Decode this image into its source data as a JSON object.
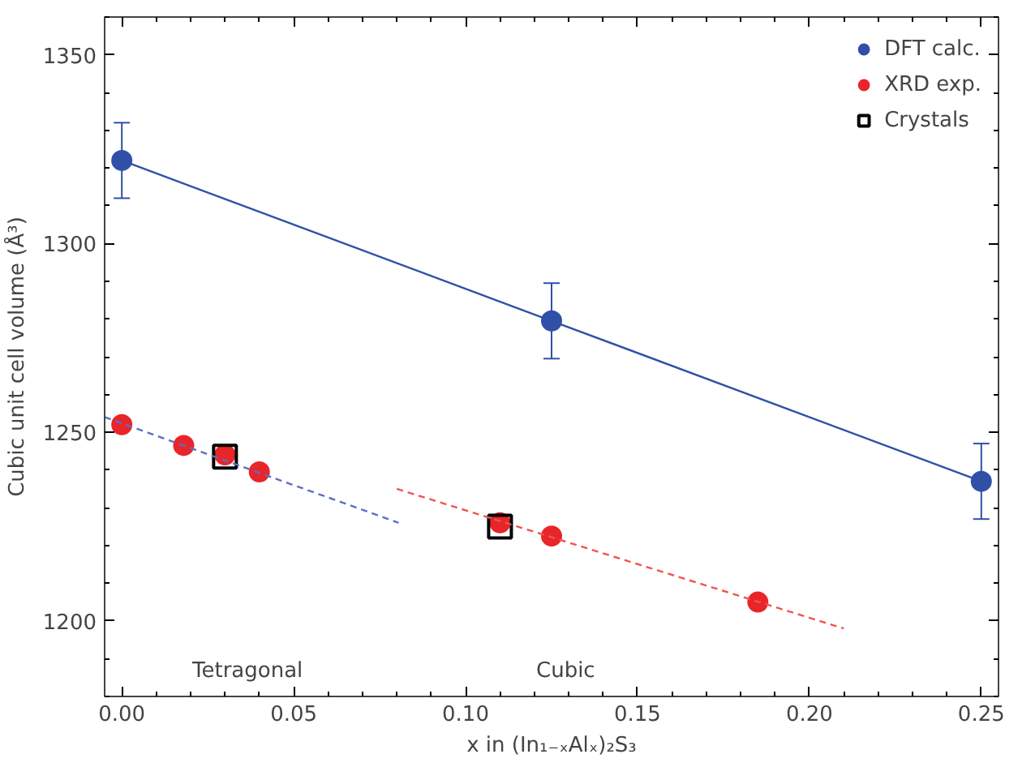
{
  "chart_data": {
    "type": "scatter",
    "xlabel": "x in (In₁₋ₓAlₓ)₂S₃",
    "ylabel": "Cubic unit cell volume (Å³)",
    "xlim": [
      -0.005,
      0.255
    ],
    "ylim": [
      1180,
      1360
    ],
    "xticks": [
      {
        "value": 0,
        "label": "0.00"
      },
      {
        "value": 0.05,
        "label": "0.05"
      },
      {
        "value": 0.1,
        "label": "0.10"
      },
      {
        "value": 0.15,
        "label": "0.15"
      },
      {
        "value": 0.2,
        "label": "0.20"
      },
      {
        "value": 0.25,
        "label": "0.25"
      }
    ],
    "yticks": [
      1200,
      1250,
      1300,
      1350
    ],
    "grid": false,
    "legend": "top right",
    "series": [
      {
        "name": "DFT calc.",
        "type": "line",
        "marker": "circle",
        "line_style": "solid",
        "color": "#3050a8",
        "x": [
          0,
          0.125,
          0.25
        ],
        "values": [
          1322,
          1279.5,
          1237
        ],
        "errors": [
          10,
          10,
          10
        ]
      },
      {
        "name": "XRD exp.",
        "marker": "circle",
        "color": "#e8262a",
        "x": [
          0,
          0.018,
          0.03,
          0.04,
          0.11,
          0.125,
          0.185
        ],
        "values": [
          1252,
          1246.5,
          1244,
          1239.5,
          1226,
          1222.5,
          1205
        ]
      },
      {
        "name": "Crystals",
        "marker": "square",
        "color": "#000000",
        "x": [
          0.03,
          0.11
        ],
        "values": [
          1243.5,
          1225
        ]
      },
      {
        "type": "line",
        "marker": "none",
        "line_style": "dashed",
        "color": "#5b6fc4",
        "x": [
          -0.005,
          0.0805
        ],
        "values": [
          1254,
          1226
        ]
      },
      {
        "type": "line",
        "marker": "none",
        "line_style": "dashed",
        "color": "#f0544f",
        "x": [
          0.08,
          0.21
        ],
        "values": [
          1235,
          1198
        ]
      }
    ],
    "annotations": [
      "Tetragonal",
      "Cubic"
    ]
  }
}
